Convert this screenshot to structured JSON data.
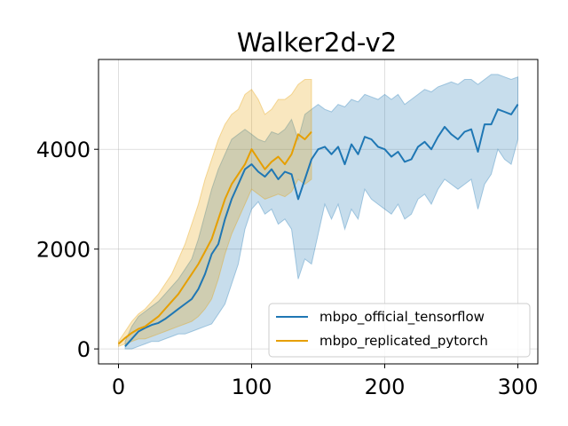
{
  "chart_data": {
    "type": "line",
    "title": "Walker2d-v2",
    "xlabel": "",
    "ylabel": "",
    "xlim": [
      -15,
      315
    ],
    "ylim": [
      -300,
      5800
    ],
    "x_ticks": [
      0,
      100,
      200,
      300
    ],
    "x_tick_labels": [
      "0",
      "100",
      "200",
      "300"
    ],
    "y_ticks": [
      0,
      2000,
      4000
    ],
    "y_tick_labels": [
      "0",
      "2000",
      "4000"
    ],
    "grid": true,
    "legend_position": "lower-right",
    "series": [
      {
        "name": "mbpo_official_tensorflow",
        "color": "#1f77b4",
        "x": [
          5,
          10,
          15,
          20,
          25,
          30,
          35,
          40,
          45,
          50,
          55,
          60,
          65,
          70,
          75,
          80,
          85,
          90,
          95,
          100,
          105,
          110,
          115,
          120,
          125,
          130,
          135,
          140,
          145,
          150,
          155,
          160,
          165,
          170,
          175,
          180,
          185,
          190,
          195,
          200,
          205,
          210,
          215,
          220,
          225,
          230,
          235,
          240,
          245,
          250,
          255,
          260,
          265,
          270,
          275,
          280,
          285,
          290,
          295,
          300
        ],
        "y": [
          50,
          200,
          350,
          420,
          480,
          520,
          600,
          700,
          800,
          900,
          1000,
          1200,
          1500,
          1900,
          2100,
          2600,
          3000,
          3300,
          3600,
          3700,
          3550,
          3450,
          3600,
          3400,
          3550,
          3500,
          3000,
          3400,
          3800,
          4000,
          4050,
          3900,
          4050,
          3700,
          4100,
          3900,
          4250,
          4200,
          4050,
          4000,
          3850,
          3950,
          3750,
          3800,
          4050,
          4150,
          4000,
          4250,
          4450,
          4300,
          4200,
          4350,
          4400,
          3950,
          4500,
          4500,
          4800,
          4750,
          4700,
          4900
        ],
        "upper": [
          150,
          450,
          650,
          750,
          850,
          950,
          1100,
          1250,
          1400,
          1600,
          1800,
          2200,
          2700,
          3200,
          3600,
          3900,
          4200,
          4300,
          4400,
          4300,
          4200,
          4150,
          4350,
          4300,
          4400,
          4600,
          4200,
          4700,
          4800,
          4900,
          4800,
          4750,
          4900,
          4850,
          5000,
          4950,
          5100,
          5050,
          5000,
          5100,
          5000,
          5100,
          4900,
          5000,
          5100,
          5200,
          5150,
          5250,
          5300,
          5350,
          5300,
          5400,
          5400,
          5300,
          5400,
          5500,
          5500,
          5450,
          5400,
          5450
        ],
        "lower": [
          0,
          0,
          50,
          100,
          150,
          150,
          200,
          250,
          300,
          300,
          350,
          400,
          450,
          500,
          700,
          900,
          1300,
          1700,
          2400,
          2800,
          2950,
          2700,
          2800,
          2500,
          2600,
          2400,
          1400,
          1800,
          1700,
          2300,
          2900,
          2600,
          2900,
          2400,
          2800,
          2600,
          3200,
          3000,
          2900,
          2800,
          2700,
          2900,
          2600,
          2700,
          3000,
          3100,
          2900,
          3200,
          3400,
          3300,
          3200,
          3300,
          3400,
          2800,
          3300,
          3500,
          4000,
          3800,
          3700,
          4200
        ]
      },
      {
        "name": "mbpo_replicated_pytorch",
        "color": "#e69f00",
        "x": [
          0,
          5,
          10,
          15,
          20,
          25,
          30,
          35,
          40,
          45,
          50,
          55,
          60,
          65,
          70,
          75,
          80,
          85,
          90,
          95,
          100,
          105,
          110,
          115,
          120,
          125,
          130,
          135,
          140,
          145
        ],
        "y": [
          100,
          220,
          320,
          400,
          450,
          550,
          650,
          800,
          950,
          1100,
          1300,
          1500,
          1700,
          1950,
          2200,
          2600,
          3000,
          3300,
          3500,
          3700,
          4000,
          3800,
          3600,
          3750,
          3850,
          3700,
          3900,
          4300,
          4200,
          4350
        ],
        "upper": [
          150,
          350,
          550,
          700,
          800,
          950,
          1100,
          1300,
          1500,
          1800,
          2100,
          2500,
          2900,
          3400,
          3800,
          4200,
          4500,
          4700,
          4800,
          5100,
          5200,
          5000,
          4700,
          4800,
          5000,
          5000,
          5100,
          5300,
          5400,
          5400
        ],
        "lower": [
          50,
          100,
          150,
          200,
          200,
          250,
          300,
          350,
          400,
          450,
          500,
          550,
          650,
          800,
          1000,
          1400,
          1900,
          2300,
          2600,
          2900,
          3200,
          3100,
          3000,
          3050,
          3100,
          3050,
          3150,
          3400,
          3300,
          3400
        ]
      }
    ]
  }
}
